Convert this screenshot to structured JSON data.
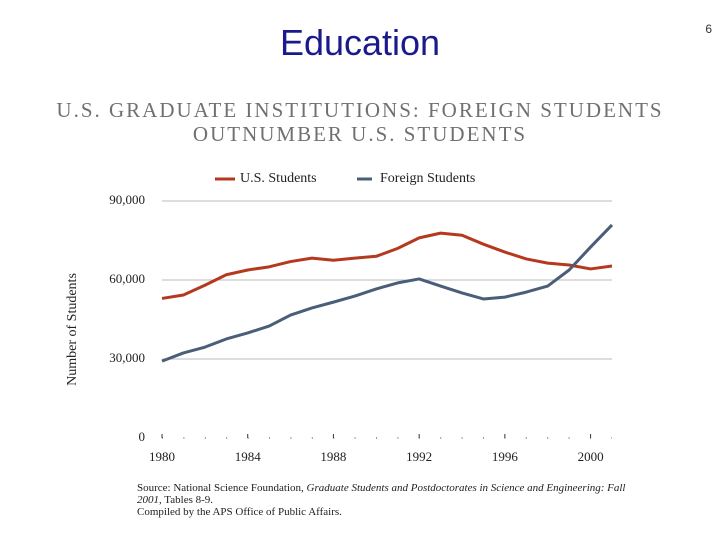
{
  "slide_title": "Education",
  "page_number": "6",
  "chart_data": {
    "type": "line",
    "title": "U.S. GRADUATE INSTITUTIONS: FOREIGN STUDENTS OUTNUMBER U.S. STUDENTS",
    "y_label": "Number of Students",
    "x": [
      1980,
      1981,
      1982,
      1983,
      1984,
      1985,
      1986,
      1987,
      1988,
      1989,
      1990,
      1991,
      1992,
      1993,
      1994,
      1995,
      1996,
      1997,
      1998,
      1999,
      2000,
      2001
    ],
    "series": [
      {
        "name": "U.S. Students",
        "color": "#b5391f",
        "values": [
          53000,
          54300,
          58000,
          62000,
          63800,
          65000,
          67000,
          68300,
          67500,
          68300,
          69000,
          72000,
          76000,
          77800,
          77000,
          73600,
          70600,
          68000,
          66400,
          65700,
          64200,
          65300
        ]
      },
      {
        "name": "Foreign Students",
        "color": "#4a5e78",
        "values": [
          29200,
          32300,
          34500,
          37600,
          39900,
          42500,
          46700,
          49400,
          51600,
          53900,
          56600,
          58900,
          60400,
          57700,
          55100,
          52800,
          53500,
          55400,
          57700,
          63800,
          72500,
          80900
        ]
      }
    ],
    "xlim": [
      1980,
      2001
    ],
    "xticks": [
      1980,
      1984,
      1988,
      1992,
      1996,
      2000
    ],
    "ylim": [
      0,
      90000
    ],
    "yticks": [
      0,
      {
        "value": 30000,
        "label": "30,000"
      },
      {
        "value": 60000,
        "label": "60,000"
      },
      {
        "value": 90000,
        "label": "90,000"
      }
    ],
    "grid": true,
    "legend": "top",
    "source": [
      "Source: National Science Foundation, ",
      "Graduate Students and Postdoctorates in Science and Engineering: Fall 2001",
      ", Tables 8-9."
    ],
    "note": "Compiled by the APS Office of Public Affairs."
  }
}
